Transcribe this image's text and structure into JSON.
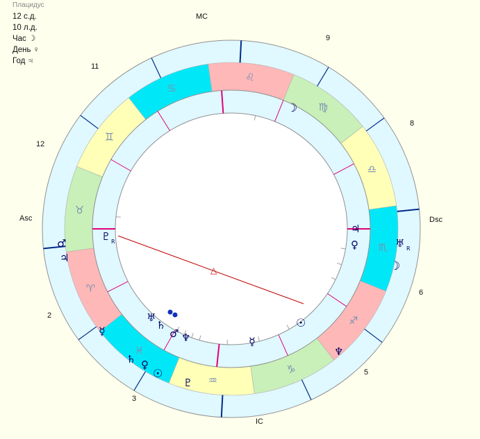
{
  "info": {
    "house_system": "Плацидус",
    "lines": [
      "12 с.д.",
      "10 л.д.",
      "Час ☽",
      "День ♀",
      "Год ♃"
    ]
  },
  "house_labels": {
    "asc": "Asc",
    "dsc": "Dsc",
    "mc": "MC",
    "ic": "IC",
    "h2": "2",
    "h3": "3",
    "h5": "5",
    "h6": "6",
    "h8": "8",
    "h9": "9",
    "h11": "11",
    "h12": "12"
  },
  "zodiac": [
    {
      "sign": "leo-icon",
      "glyph": "♌",
      "color": "#ffb8b8"
    },
    {
      "sign": "cancer-icon",
      "glyph": "♋",
      "color": "#00e8f8"
    },
    {
      "sign": "gemini-icon",
      "glyph": "♊",
      "color": "#ffffb8"
    },
    {
      "sign": "taurus-icon",
      "glyph": "♉",
      "color": "#c8f0b8"
    },
    {
      "sign": "aries-icon",
      "glyph": "♈",
      "color": "#ffb8b8"
    },
    {
      "sign": "pisces-icon",
      "glyph": "♓",
      "color": "#00e8f8"
    },
    {
      "sign": "aquarius-icon",
      "glyph": "♒",
      "color": "#ffffb8"
    },
    {
      "sign": "capricorn-icon",
      "glyph": "♑",
      "color": "#c8f0b8"
    },
    {
      "sign": "sagittarius-icon",
      "glyph": "♐",
      "color": "#ffb8b8"
    },
    {
      "sign": "scorpio-icon",
      "glyph": "♏",
      "color": "#00e8f8"
    },
    {
      "sign": "libra-icon",
      "glyph": "♎",
      "color": "#ffffb8"
    },
    {
      "sign": "virgo-icon",
      "glyph": "♍",
      "color": "#c8f0b8"
    }
  ],
  "planets_outer": [
    {
      "name": "mars-icon",
      "glyph": "♂"
    },
    {
      "name": "jupiter-icon",
      "glyph": "♃"
    },
    {
      "name": "mercury-icon",
      "glyph": "☿"
    },
    {
      "name": "saturn-icon",
      "glyph": "♄"
    },
    {
      "name": "venus-icon",
      "glyph": "♀"
    },
    {
      "name": "sun-icon",
      "glyph": "☉"
    },
    {
      "name": "pluto-icon",
      "glyph": "♇"
    },
    {
      "name": "neptune-icon",
      "glyph": "♆"
    },
    {
      "name": "moon-icon",
      "glyph": "☽"
    },
    {
      "name": "uranus-icon",
      "glyph": "♅",
      "retro": "R"
    }
  ],
  "planets_inner": [
    {
      "name": "moon-icon",
      "glyph": "☽"
    },
    {
      "name": "jupiter-icon",
      "glyph": "♃"
    },
    {
      "name": "venus-icon",
      "glyph": "♀"
    },
    {
      "name": "sun-icon",
      "glyph": "☉"
    },
    {
      "name": "mercury-icon",
      "glyph": "☿"
    },
    {
      "name": "neptune-icon",
      "glyph": "♆"
    },
    {
      "name": "mars-icon",
      "glyph": "♂"
    },
    {
      "name": "saturn-icon",
      "glyph": "♄"
    },
    {
      "name": "uranus-icon",
      "glyph": "♅"
    },
    {
      "name": "pluto-icon",
      "glyph": "♇",
      "retro": "R"
    }
  ],
  "aspect_symbol": "△",
  "colors": {
    "house_ring": "#e0f8ff",
    "ring_stroke": "#909090",
    "house_cusp": "#002a8a",
    "inner_cusp": "#e0007a",
    "aspect": "#c00000",
    "planet": "#000066"
  }
}
